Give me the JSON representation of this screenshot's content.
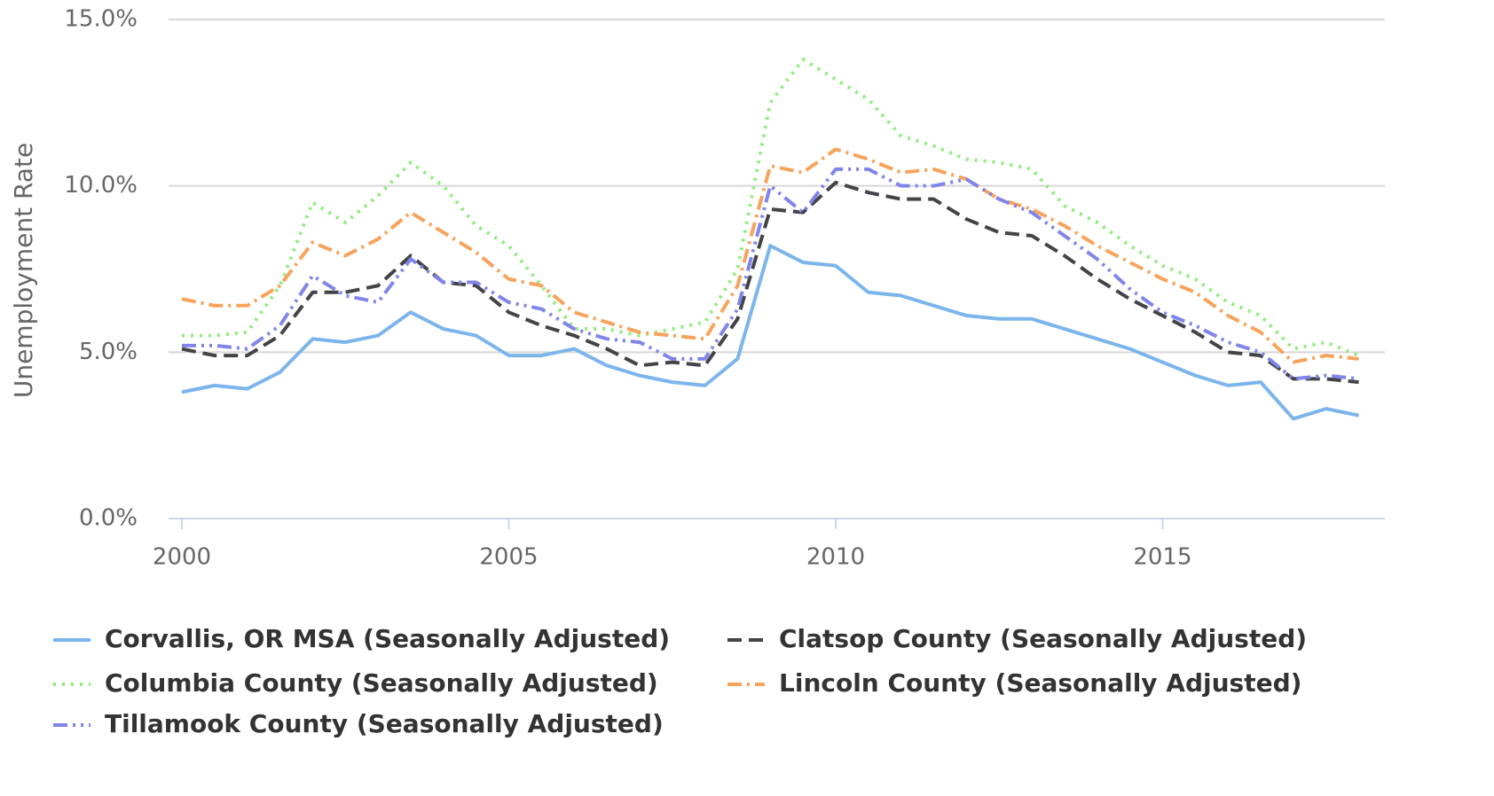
{
  "chart_data": {
    "type": "line",
    "y_label": "Unemployment Rate",
    "x": [
      2000,
      2000.5,
      2001,
      2001.5,
      2002,
      2002.5,
      2003,
      2003.5,
      2004,
      2004.5,
      2005,
      2005.5,
      2006,
      2006.5,
      2007,
      2007.5,
      2008,
      2008.5,
      2009,
      2009.5,
      2010,
      2010.5,
      2011,
      2011.5,
      2012,
      2012.5,
      2013,
      2013.5,
      2014,
      2014.5,
      2015,
      2015.5,
      2016,
      2016.5,
      2017,
      2017.5,
      2018
    ],
    "series": [
      {
        "name": "Corvallis, OR MSA (Seasonally Adjusted)",
        "color": "#7cb5ec",
        "dash": "solid",
        "values": [
          3.8,
          4.0,
          3.9,
          4.4,
          5.4,
          5.3,
          5.5,
          6.2,
          5.7,
          5.5,
          4.9,
          4.9,
          5.1,
          4.6,
          4.3,
          4.1,
          4.0,
          4.8,
          8.2,
          7.7,
          7.6,
          6.8,
          6.7,
          6.4,
          6.1,
          6.0,
          6.0,
          5.7,
          5.4,
          5.1,
          4.7,
          4.3,
          4.0,
          4.1,
          3.0,
          3.3,
          3.1
        ]
      },
      {
        "name": "Clatsop County (Seasonally Adjusted)",
        "color": "#434348",
        "dash": "dash",
        "values": [
          5.1,
          4.9,
          4.9,
          5.5,
          6.8,
          6.8,
          7.0,
          7.9,
          7.1,
          7.0,
          6.2,
          5.8,
          5.5,
          5.1,
          4.6,
          4.7,
          4.6,
          6.0,
          9.3,
          9.2,
          10.1,
          9.8,
          9.6,
          9.6,
          9.0,
          8.6,
          8.5,
          7.9,
          7.2,
          6.6,
          6.1,
          5.6,
          5.0,
          4.9,
          4.2,
          4.2,
          4.1
        ]
      },
      {
        "name": "Columbia County (Seasonally Adjusted)",
        "color": "#90ed7d",
        "dash": "dot",
        "values": [
          5.5,
          5.5,
          5.6,
          7.0,
          9.5,
          8.9,
          9.7,
          10.7,
          10.0,
          8.8,
          8.2,
          7.0,
          5.7,
          5.7,
          5.5,
          5.7,
          5.9,
          7.5,
          12.5,
          13.8,
          13.2,
          12.6,
          11.5,
          11.2,
          10.8,
          10.7,
          10.5,
          9.4,
          8.9,
          8.2,
          7.6,
          7.2,
          6.5,
          6.1,
          5.1,
          5.3,
          4.9
        ]
      },
      {
        "name": "Lincoln County (Seasonally Adjusted)",
        "color": "#f7a35c",
        "dash": "dashdot",
        "values": [
          6.6,
          6.4,
          6.4,
          7.0,
          8.3,
          7.9,
          8.4,
          9.2,
          8.6,
          8.0,
          7.2,
          7.0,
          6.2,
          5.9,
          5.6,
          5.5,
          5.4,
          7.0,
          10.6,
          10.4,
          11.1,
          10.8,
          10.4,
          10.5,
          10.2,
          9.6,
          9.3,
          8.8,
          8.2,
          7.7,
          7.2,
          6.8,
          6.1,
          5.6,
          4.7,
          4.9,
          4.8
        ]
      },
      {
        "name": "Tillamook County (Seasonally Adjusted)",
        "color": "#8085e9",
        "dash": "dashdotdot",
        "values": [
          5.2,
          5.2,
          5.1,
          5.8,
          7.3,
          6.7,
          6.5,
          7.8,
          7.1,
          7.1,
          6.5,
          6.3,
          5.7,
          5.4,
          5.3,
          4.8,
          4.8,
          6.3,
          10.0,
          9.2,
          10.5,
          10.5,
          10.0,
          10.0,
          10.2,
          9.6,
          9.2,
          8.5,
          7.8,
          6.9,
          6.2,
          5.8,
          5.3,
          5.0,
          4.2,
          4.3,
          4.2
        ]
      }
    ],
    "xlim": [
      2000,
      2018.4
    ],
    "xticks": [
      2000,
      2005,
      2010,
      2015
    ],
    "ylim": [
      0,
      15
    ],
    "yticks": [
      {
        "value": 0,
        "label": "0.0%"
      },
      {
        "value": 5,
        "label": "5.0%"
      },
      {
        "value": 10,
        "label": "10.0%"
      },
      {
        "value": 15,
        "label": "15.0%"
      }
    ],
    "grid": true,
    "legend": "bottom"
  }
}
